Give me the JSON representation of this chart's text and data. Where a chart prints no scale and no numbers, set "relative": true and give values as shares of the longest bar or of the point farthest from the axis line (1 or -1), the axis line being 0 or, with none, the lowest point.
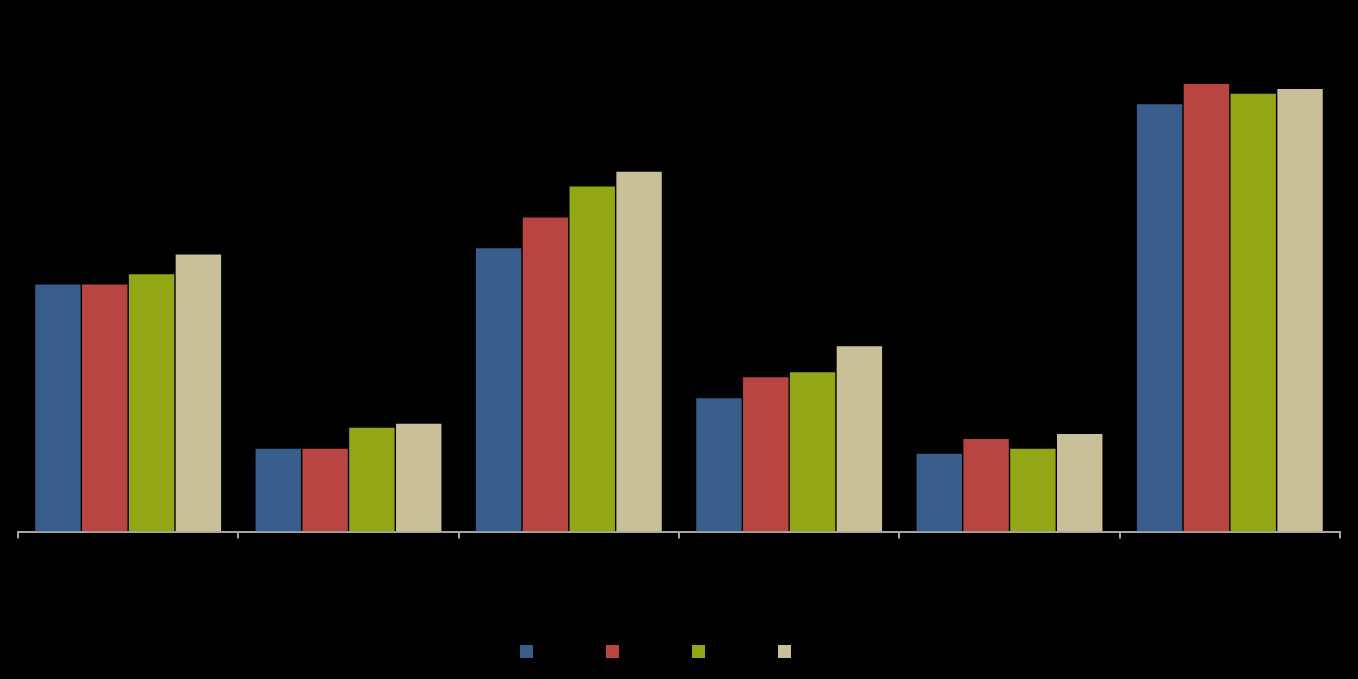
{
  "chart_data": {
    "type": "bar",
    "relative": true,
    "categories": [
      null,
      null,
      null,
      null,
      null,
      null
    ],
    "series": [
      {
        "color": "#385d8a",
        "values": [
          0.552,
          0.185,
          0.633,
          0.298,
          0.174,
          0.955
        ]
      },
      {
        "color": "#b94543",
        "values": [
          0.552,
          0.185,
          0.702,
          0.345,
          0.207,
          1
        ]
      },
      {
        "color": "#93a615",
        "values": [
          0.575,
          0.232,
          0.771,
          0.356,
          0.185,
          0.978
        ]
      },
      {
        "color": "#c9bf99",
        "values": [
          0.619,
          0.241,
          0.804,
          0.414,
          0.218,
          0.989
        ]
      }
    ]
  }
}
